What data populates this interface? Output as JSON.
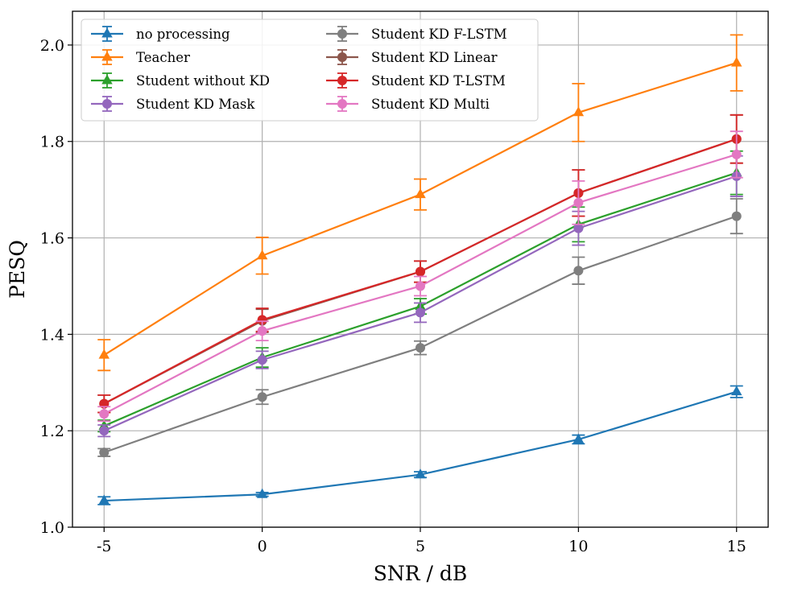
{
  "chart_data": {
    "type": "line",
    "title": "",
    "xlabel": "SNR / dB",
    "ylabel": "PESQ",
    "x": [
      -5,
      0,
      5,
      10,
      15
    ],
    "x_tick_labels": [
      "-5",
      "0",
      "5",
      "10",
      "15"
    ],
    "y_ticks": [
      1.0,
      1.2,
      1.4,
      1.6,
      1.8,
      2.0
    ],
    "y_tick_labels": [
      "1.0",
      "1.2",
      "1.4",
      "1.6",
      "1.8",
      "2.0"
    ],
    "xlim": [
      -6,
      16
    ],
    "ylim": [
      1.0,
      2.07
    ],
    "grid": true,
    "legend_position": "top-left",
    "series": [
      {
        "name": "no processing",
        "color": "#1f77b4",
        "marker": "triangle",
        "values": [
          1.055,
          1.068,
          1.109,
          1.182,
          1.281
        ],
        "errors": [
          0.008,
          0.004,
          0.006,
          0.009,
          0.012
        ]
      },
      {
        "name": "Teacher",
        "color": "#ff7f0e",
        "marker": "triangle",
        "values": [
          1.357,
          1.563,
          1.69,
          1.86,
          1.963
        ],
        "errors": [
          0.032,
          0.038,
          0.032,
          0.06,
          0.058
        ]
      },
      {
        "name": "Student without KD",
        "color": "#2ca02c",
        "marker": "triangle",
        "values": [
          1.21,
          1.352,
          1.458,
          1.628,
          1.735
        ],
        "errors": [
          0.012,
          0.02,
          0.016,
          0.036,
          0.045
        ]
      },
      {
        "name": "Student KD Mask",
        "color": "#9467bd",
        "marker": "circle",
        "values": [
          1.2,
          1.347,
          1.445,
          1.62,
          1.728
        ],
        "errors": [
          0.012,
          0.018,
          0.02,
          0.035,
          0.042
        ]
      },
      {
        "name": "Student KD F-LSTM",
        "color": "#7f7f7f",
        "marker": "circle",
        "values": [
          1.155,
          1.27,
          1.372,
          1.532,
          1.645
        ],
        "errors": [
          0.008,
          0.015,
          0.014,
          0.028,
          0.036
        ]
      },
      {
        "name": "Student KD Linear",
        "color": "#8c564b",
        "marker": "circle",
        "values": [
          1.256,
          1.428,
          1.53,
          1.693,
          1.805
        ],
        "errors": [
          0.018,
          0.024,
          0.022,
          0.048,
          0.05
        ]
      },
      {
        "name": "Student KD T-LSTM",
        "color": "#d62728",
        "marker": "circle",
        "values": [
          1.256,
          1.43,
          1.53,
          1.693,
          1.805
        ],
        "errors": [
          0.018,
          0.024,
          0.022,
          0.048,
          0.05
        ]
      },
      {
        "name": "Student KD Multi",
        "color": "#e377c2",
        "marker": "circle",
        "values": [
          1.235,
          1.407,
          1.5,
          1.673,
          1.773
        ],
        "errors": [
          0.015,
          0.02,
          0.02,
          0.045,
          0.048
        ]
      }
    ]
  }
}
